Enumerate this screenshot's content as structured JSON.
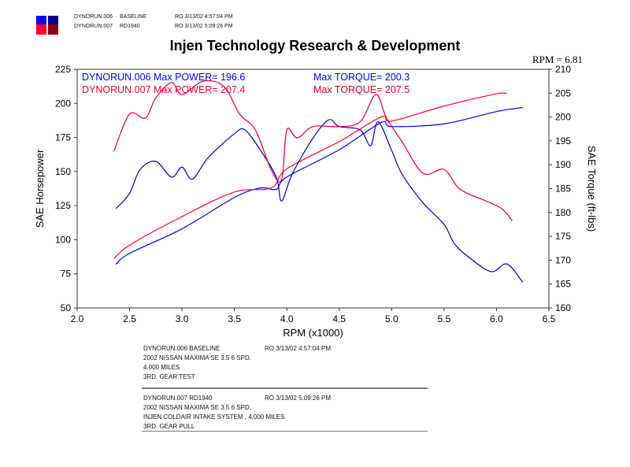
{
  "header": {
    "legend_colors": [
      "#0000ff",
      "#00008b",
      "#ff0033",
      "#8b0018"
    ],
    "runs": [
      {
        "name": "DYNORUN.006",
        "desc": "BASELINE",
        "stamp": "RO  3/13/02 4:57:04 PM"
      },
      {
        "name": "DYNORUN.007",
        "desc": "RD1940",
        "stamp": "RO  3/13/02 5:09:26 PM"
      }
    ]
  },
  "chart_data": {
    "type": "line",
    "title": "Injen Technology Research & Development",
    "annotation": "RPM = 6.81",
    "xlabel": "RPM (x1000)",
    "ylabel": "SAE Horsepower",
    "y2label": "SAE Torque (ft-lbs)",
    "xlim": [
      2.0,
      6.5
    ],
    "ylim": [
      50,
      225
    ],
    "y2lim": [
      160,
      210
    ],
    "xticks": [
      "2.0",
      "2.5",
      "3.0",
      "3.5",
      "4.0",
      "4.5",
      "5.0",
      "5.5",
      "6.0",
      "6.5"
    ],
    "yticks": [
      "225",
      "200",
      "175",
      "150",
      "125",
      "100",
      "75",
      "50"
    ],
    "y2ticks": [
      "210",
      "205",
      "200",
      "195",
      "190",
      "185",
      "180",
      "175",
      "170",
      "165",
      "160"
    ],
    "legend": [
      {
        "text": "DYNORUN.006  Max POWER= 196.6",
        "color": "#0000ff"
      },
      {
        "text": "Max TORQUE= 200.3",
        "color": "#0000ff"
      },
      {
        "text": "DYNORUN.007  Max POWER= 207.4",
        "color": "#ff0033"
      },
      {
        "text": "Max TORQUE= 207.5",
        "color": "#cc0033"
      }
    ],
    "series": [
      {
        "run": "DYNORUN.006",
        "quantity": "power",
        "axis": "left",
        "color": "#0000ff",
        "x": [
          2.37,
          2.5,
          3.0,
          3.5,
          3.75,
          3.9,
          4.0,
          4.5,
          4.9,
          5.0,
          5.5,
          6.0,
          6.25
        ],
        "y": [
          82,
          90,
          108,
          131,
          138,
          137,
          146,
          166,
          186,
          183,
          185,
          194,
          197
        ]
      },
      {
        "run": "DYNORUN.007",
        "quantity": "power",
        "axis": "left",
        "color": "#ff0033",
        "x": [
          2.35,
          2.5,
          3.0,
          3.5,
          3.85,
          4.0,
          4.5,
          4.9,
          5.0,
          5.5,
          6.0,
          6.1
        ],
        "y": [
          86,
          96,
          117,
          135,
          138,
          152,
          172,
          190,
          187,
          198,
          207,
          207
        ]
      },
      {
        "run": "DYNORUN.006",
        "quantity": "torque",
        "axis": "right",
        "color": "#0000cc",
        "x": [
          2.37,
          2.5,
          2.6,
          2.75,
          2.9,
          3.0,
          3.1,
          3.25,
          3.5,
          3.6,
          3.75,
          3.9,
          3.95,
          4.05,
          4.25,
          4.4,
          4.5,
          4.7,
          4.8,
          4.87,
          5.0,
          5.1,
          5.3,
          5.5,
          5.6,
          5.75,
          5.95,
          6.1,
          6.25
        ],
        "y": [
          180.8,
          184,
          189,
          190.7,
          187.4,
          189.5,
          187,
          191.5,
          196.5,
          197.3,
          193,
          187.4,
          182.4,
          188,
          195.6,
          199.4,
          198,
          197.3,
          194,
          199,
          193,
          188,
          182,
          177.5,
          173.4,
          170.4,
          167.6,
          169.2,
          165.4
        ]
      },
      {
        "run": "DYNORUN.007",
        "quantity": "torque",
        "axis": "right",
        "color": "#dd0033",
        "x": [
          2.35,
          2.5,
          2.65,
          2.75,
          2.9,
          3.0,
          3.2,
          3.4,
          3.55,
          3.7,
          3.85,
          3.95,
          4.0,
          4.1,
          4.25,
          4.5,
          4.7,
          4.85,
          4.95,
          5.1,
          5.3,
          5.5,
          5.65,
          5.9,
          6.05,
          6.15
        ],
        "y": [
          192.8,
          200.6,
          199.8,
          204,
          207.2,
          204.7,
          207.5,
          206.4,
          200.6,
          197.3,
          189,
          186.9,
          197.3,
          195.6,
          198,
          198,
          199,
          204.7,
          199.8,
          194.8,
          188.2,
          189,
          184.9,
          182.4,
          180.8,
          178.3
        ]
      }
    ]
  },
  "footer": [
    {
      "lines": [
        "DYNORUN.006   BASELINE",
        "2002 NISSAN MAXIMA SE 3.5 6 SPD.",
        "4,000 MILES",
        "3RD. GEAR TEST"
      ],
      "stamp": "RO   3/13/02 4:57:04 PM"
    },
    {
      "lines": [
        "DYNORUN.007   RD1940",
        "2002 NISSAN MAXIMA SE 3.5 6 SPD.",
        "INJEN COLDAIR INTAKE SYSTEM , 4,000 MILES",
        "3RD. GEAR PULL"
      ],
      "stamp": "RO   3/13/02 5:09:26 PM"
    }
  ]
}
